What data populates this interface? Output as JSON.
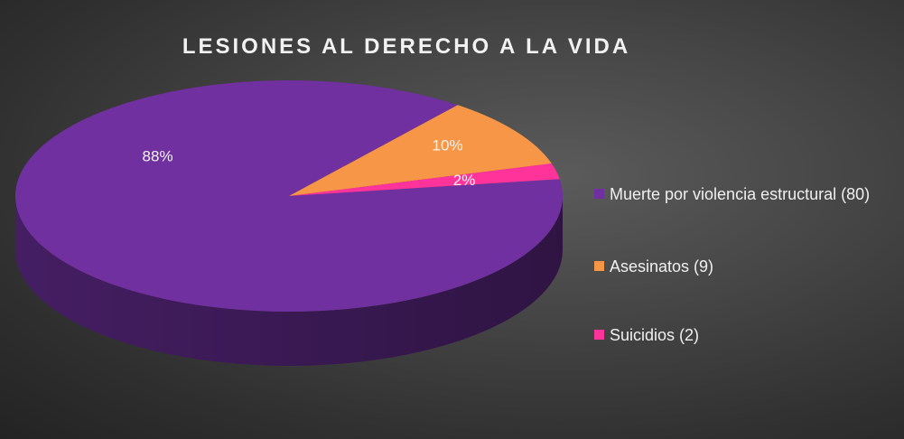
{
  "chart_data": {
    "type": "pie",
    "title": "LESIONES AL DERECHO A LA VIDA",
    "categories": [
      "Muerte por violencia estructural (80)",
      "Asesinatos (9)",
      "Suicidios (2)"
    ],
    "values": [
      80,
      9,
      2
    ],
    "percent_labels": [
      "88%",
      "10%",
      "2%"
    ],
    "colors": [
      "#7030a0",
      "#f79646",
      "#ff3399"
    ],
    "legend_position": "right",
    "style": "3d"
  }
}
